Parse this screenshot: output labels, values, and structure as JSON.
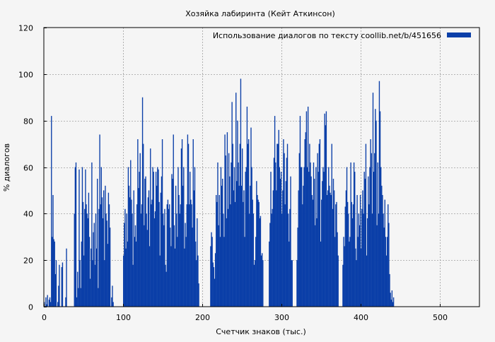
{
  "chart_data": {
    "type": "bar",
    "title": "Хозяйка лабиринта (Кейт Аткинсон)",
    "xlabel": "Счетчик знаков (тыс.)",
    "ylabel": "% диалогов",
    "xlim": [
      0,
      550
    ],
    "ylim": [
      0,
      120
    ],
    "x_ticks": [
      0,
      100,
      200,
      300,
      400,
      500
    ],
    "y_ticks": [
      0,
      20,
      40,
      60,
      80,
      100,
      120
    ],
    "grid": true,
    "legend_position": "top-right",
    "series": [
      {
        "name": "Использование диалогов по тексту  coollib.net/b/451656",
        "color": "#0b3fa8",
        "x_start": 1,
        "x_step": 1,
        "values": [
          2,
          0,
          4,
          1,
          5,
          0,
          3,
          4,
          2,
          82,
          30,
          48,
          29,
          28,
          14,
          20,
          0,
          2,
          9,
          18,
          0,
          0,
          17,
          19,
          0,
          0,
          0,
          4,
          25,
          0,
          0,
          0,
          0,
          0,
          0,
          0,
          0,
          0,
          40,
          60,
          62,
          4,
          15,
          8,
          59,
          20,
          8,
          28,
          60,
          45,
          22,
          42,
          59,
          44,
          40,
          38,
          49,
          30,
          12,
          25,
          62,
          20,
          32,
          36,
          18,
          40,
          25,
          55,
          8,
          42,
          74,
          44,
          60,
          47,
          38,
          50,
          20,
          52,
          40,
          37,
          27,
          49,
          44,
          34,
          0,
          4,
          9,
          2,
          0,
          0,
          0,
          0,
          0,
          0,
          0,
          0,
          0,
          0,
          0,
          0,
          22,
          36,
          42,
          25,
          40,
          28,
          60,
          52,
          47,
          63,
          46,
          40,
          18,
          50,
          30,
          35,
          28,
          44,
          72,
          51,
          58,
          66,
          40,
          44,
          90,
          70,
          35,
          55,
          56,
          40,
          33,
          47,
          50,
          26,
          68,
          44,
          46,
          60,
          58,
          38,
          41,
          58,
          52,
          60,
          59,
          45,
          22,
          49,
          56,
          72,
          40,
          35,
          42,
          18,
          15,
          44,
          46,
          42,
          44,
          34,
          26,
          57,
          55,
          74,
          35,
          25,
          52,
          40,
          30,
          60,
          48,
          40,
          44,
          68,
          72,
          52,
          60,
          25,
          36,
          30,
          44,
          74,
          70,
          44,
          58,
          46,
          44,
          34,
          72,
          50,
          60,
          28,
          20,
          38,
          22,
          10,
          0,
          0,
          0,
          0,
          0,
          0,
          0,
          0,
          0,
          0,
          0,
          0,
          0,
          0,
          26,
          32,
          30,
          19,
          17,
          12,
          23,
          48,
          45,
          62,
          35,
          48,
          30,
          60,
          52,
          55,
          40,
          30,
          74,
          65,
          38,
          75,
          42,
          66,
          56,
          44,
          62,
          88,
          70,
          50,
          60,
          45,
          92,
          54,
          80,
          62,
          52,
          70,
          98,
          52,
          68,
          45,
          50,
          30,
          58,
          60,
          86,
          70,
          72,
          40,
          52,
          77,
          60,
          46,
          40,
          18,
          20,
          30,
          54,
          48,
          46,
          45,
          38,
          39,
          22,
          23,
          20,
          0,
          0,
          0,
          0,
          0,
          0,
          0,
          28,
          36,
          58,
          40,
          42,
          50,
          64,
          82,
          62,
          50,
          70,
          70,
          76,
          60,
          55,
          58,
          40,
          50,
          72,
          66,
          44,
          54,
          64,
          70,
          40,
          28,
          42,
          56,
          20,
          20,
          0,
          0,
          0,
          0,
          0,
          20,
          34,
          50,
          66,
          82,
          60,
          60,
          44,
          52,
          60,
          72,
          75,
          84,
          60,
          86,
          58,
          70,
          62,
          56,
          48,
          46,
          62,
          55,
          35,
          60,
          38,
          66,
          58,
          70,
          72,
          28,
          46,
          54,
          60,
          58,
          83,
          78,
          84,
          48,
          50,
          60,
          52,
          49,
          48,
          70,
          42,
          55,
          50,
          30,
          44,
          45,
          32,
          22,
          0,
          0,
          0,
          0,
          0,
          18,
          30,
          26,
          43,
          50,
          60,
          45,
          40,
          28,
          30,
          62,
          45,
          38,
          44,
          62,
          58,
          25,
          20,
          48,
          30,
          40,
          35,
          48,
          25,
          42,
          50,
          40,
          58,
          55,
          70,
          22,
          38,
          56,
          44,
          60,
          72,
          66,
          40,
          92,
          58,
          66,
          85,
          80,
          35,
          62,
          40,
          97,
          84,
          60,
          52,
          48,
          40,
          34,
          46,
          30,
          22,
          30,
          44,
          36,
          14,
          6,
          3,
          7,
          2,
          4
        ]
      }
    ]
  }
}
